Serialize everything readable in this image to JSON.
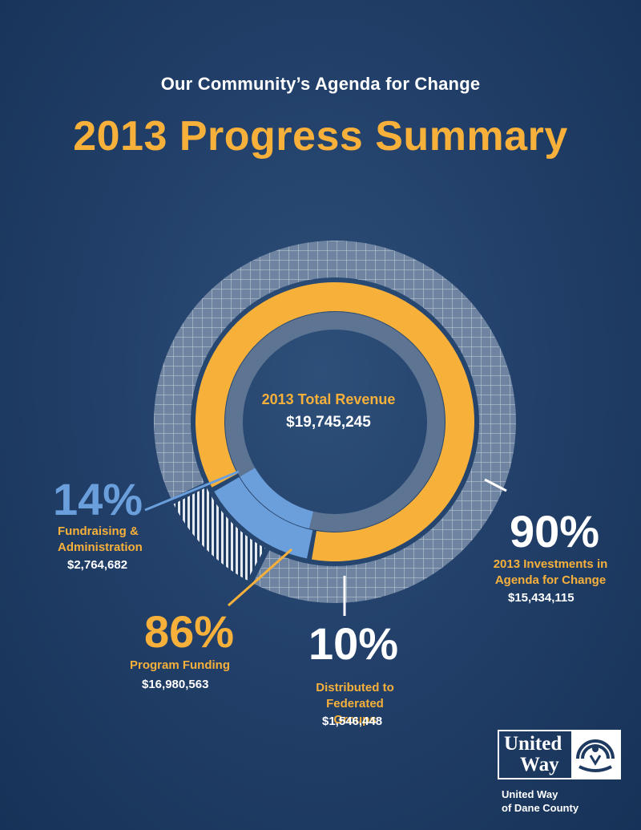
{
  "header": {
    "subtitle": "Our Community’s Agenda for Change",
    "title": "2013 Progress Summary"
  },
  "center": {
    "label": "2013 Total Revenue",
    "value": "$19,745,245"
  },
  "callouts": {
    "fundraising": {
      "percent": "14%",
      "label_line1": "Fundraising &",
      "label_line2": "Administration",
      "amount": "$2,764,682"
    },
    "program": {
      "percent": "86%",
      "label": "Program Funding",
      "amount": "$16,980,563"
    },
    "federated": {
      "percent": "10%",
      "label_line1": "Distributed to",
      "label_line2": "Federated Groups",
      "amount": "$1,546,448"
    },
    "agenda": {
      "percent": "90%",
      "label_line1": "2013 Investments in",
      "label_line2": "Agenda for Change",
      "amount": "$15,434,115"
    }
  },
  "logo": {
    "line1": "United",
    "line2": "Way",
    "caption_line1": "United Way",
    "caption_line2": "of Dane County"
  },
  "colors": {
    "background": "#22406a",
    "accent_gold": "#f7b13b",
    "accent_blue": "#6a9fdc",
    "ring_gray": "#5d7492"
  },
  "chart_data": {
    "type": "pie",
    "inner_ring": {
      "slices": [
        {
          "label": "Program Funding",
          "percent": 86,
          "value": 16980563,
          "color": "#f7b13b"
        },
        {
          "label": "Fundraising & Administration",
          "percent": 14,
          "value": 2764682,
          "color": "#6a9fdc"
        }
      ]
    },
    "outer_ring": {
      "slices": [
        {
          "label": "2013 Investments in Agenda for Change",
          "percent": 90,
          "value": 15434115
        },
        {
          "label": "Distributed to Federated Groups",
          "percent": 10,
          "value": 1546448
        }
      ]
    }
  }
}
